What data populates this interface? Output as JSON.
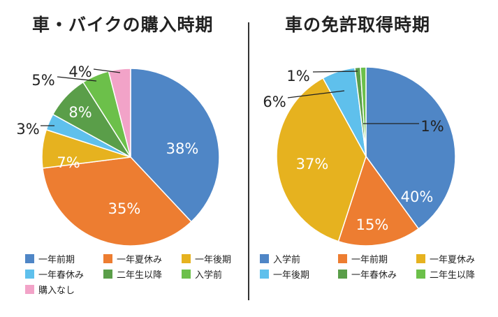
{
  "colors": {
    "blue": "#4F86C6",
    "orange": "#ED7D31",
    "yellow": "#E6B21F",
    "lightblue": "#5FC0EC",
    "darkgreen": "#5A9E49",
    "green": "#6CC04A",
    "pink": "#F2A3C8"
  },
  "chart_data": [
    {
      "type": "pie",
      "title": "車・バイクの購入時期",
      "slices": [
        {
          "name": "一年前期",
          "value": 38,
          "label": "38%",
          "color": "#4F86C6"
        },
        {
          "name": "一年夏休み",
          "value": 35,
          "label": "35%",
          "color": "#ED7D31"
        },
        {
          "name": "一年後期",
          "value": 7,
          "label": "7%",
          "color": "#E6B21F"
        },
        {
          "name": "一年春休み",
          "value": 3,
          "label": "3%",
          "color": "#5FC0EC"
        },
        {
          "name": "二年生以降",
          "value": 8,
          "label": "8%",
          "color": "#5A9E49"
        },
        {
          "name": "入学前",
          "value": 5,
          "label": "5%",
          "color": "#6CC04A"
        },
        {
          "name": "購入なし",
          "value": 4,
          "label": "4%",
          "color": "#F2A3C8"
        }
      ],
      "legend": [
        "一年前期",
        "一年夏休み",
        "一年後期",
        "一年春休み",
        "二年生以降",
        "入学前",
        "購入なし"
      ],
      "legend_position": "bottom"
    },
    {
      "type": "pie",
      "title": "車の免許取得時期",
      "slices": [
        {
          "name": "入学前",
          "value": 40,
          "label": "40%",
          "color": "#4F86C6"
        },
        {
          "name": "一年前期",
          "value": 15,
          "label": "15%",
          "color": "#ED7D31"
        },
        {
          "name": "一年夏休み",
          "value": 37,
          "label": "37%",
          "color": "#E6B21F"
        },
        {
          "name": "一年後期",
          "value": 6,
          "label": "6%",
          "color": "#5FC0EC"
        },
        {
          "name": "一年春休み",
          "value": 1,
          "label": "1%",
          "color": "#5A9E49"
        },
        {
          "name": "二年生以降",
          "value": 1,
          "label": "1%",
          "color": "#6CC04A"
        }
      ],
      "legend": [
        "入学前",
        "一年前期",
        "一年夏休み",
        "一年後期",
        "一年春休み",
        "二年生以降"
      ],
      "legend_position": "bottom"
    }
  ]
}
